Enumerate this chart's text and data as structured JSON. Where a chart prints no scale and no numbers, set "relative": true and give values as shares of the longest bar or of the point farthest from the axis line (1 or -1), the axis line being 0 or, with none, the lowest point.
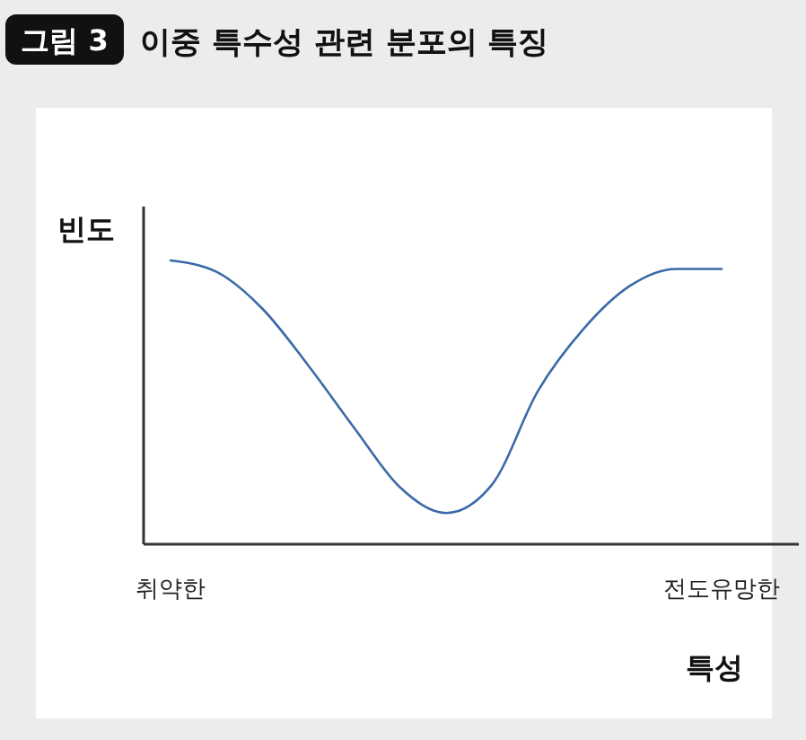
{
  "chart_data": {
    "type": "line",
    "title": "이중 특수성 관련 분포의 특징",
    "annotations": [
      "그림 3"
    ],
    "ylabel": "빈도",
    "xlabel": "특성",
    "relative": true,
    "categories": [
      "취약한",
      null,
      null,
      null,
      null,
      null,
      null,
      null,
      null,
      null,
      null,
      null,
      "전도유망한"
    ],
    "series": [
      {
        "color": "#3a6aa8",
        "values": [
          1,
          0.96,
          0.83,
          0.63,
          0.41,
          0.2,
          0.11,
          0.21,
          0.54,
          0.76,
          0.91,
          0.97,
          0.97
        ]
      }
    ],
    "line_style": "solid"
  }
}
